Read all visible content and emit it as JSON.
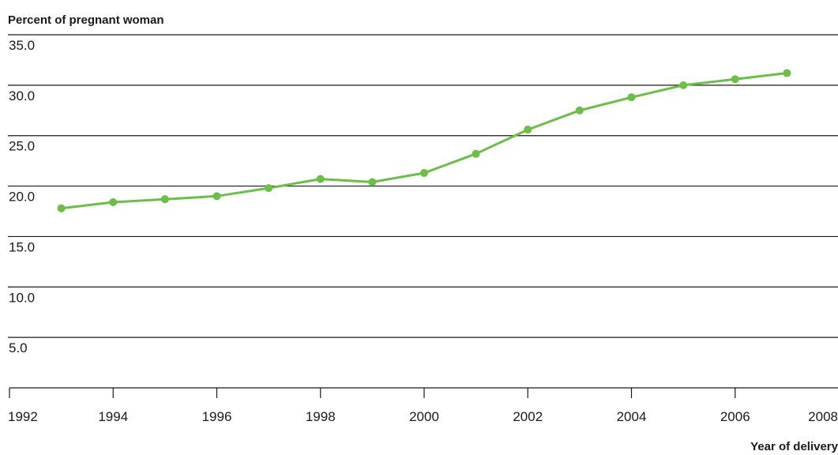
{
  "chart_data": {
    "type": "line",
    "title": "",
    "ylabel": "Percent of pregnant woman",
    "xlabel": "Year of delivery",
    "x": [
      1993,
      1994,
      1995,
      1996,
      1997,
      1998,
      1999,
      2000,
      2001,
      2002,
      2003,
      2004,
      2005,
      2006,
      2007
    ],
    "series": [
      {
        "color": "#6abf45",
        "values": [
          17.8,
          18.4,
          18.7,
          19.0,
          19.8,
          20.7,
          20.4,
          21.3,
          23.2,
          25.6,
          27.5,
          28.8,
          30.0,
          30.6,
          31.2
        ]
      }
    ],
    "ylim": [
      0,
      35
    ],
    "yticks": [
      "5.0",
      "10.0",
      "15.0",
      "20.0",
      "25.0",
      "30.0",
      "35.0"
    ],
    "xlim": [
      1992,
      2008
    ],
    "xticks": [
      "1992",
      "1994",
      "1996",
      "1998",
      "2000",
      "2002",
      "2004",
      "2006",
      "2008"
    ],
    "grid": true,
    "legend": "none"
  }
}
